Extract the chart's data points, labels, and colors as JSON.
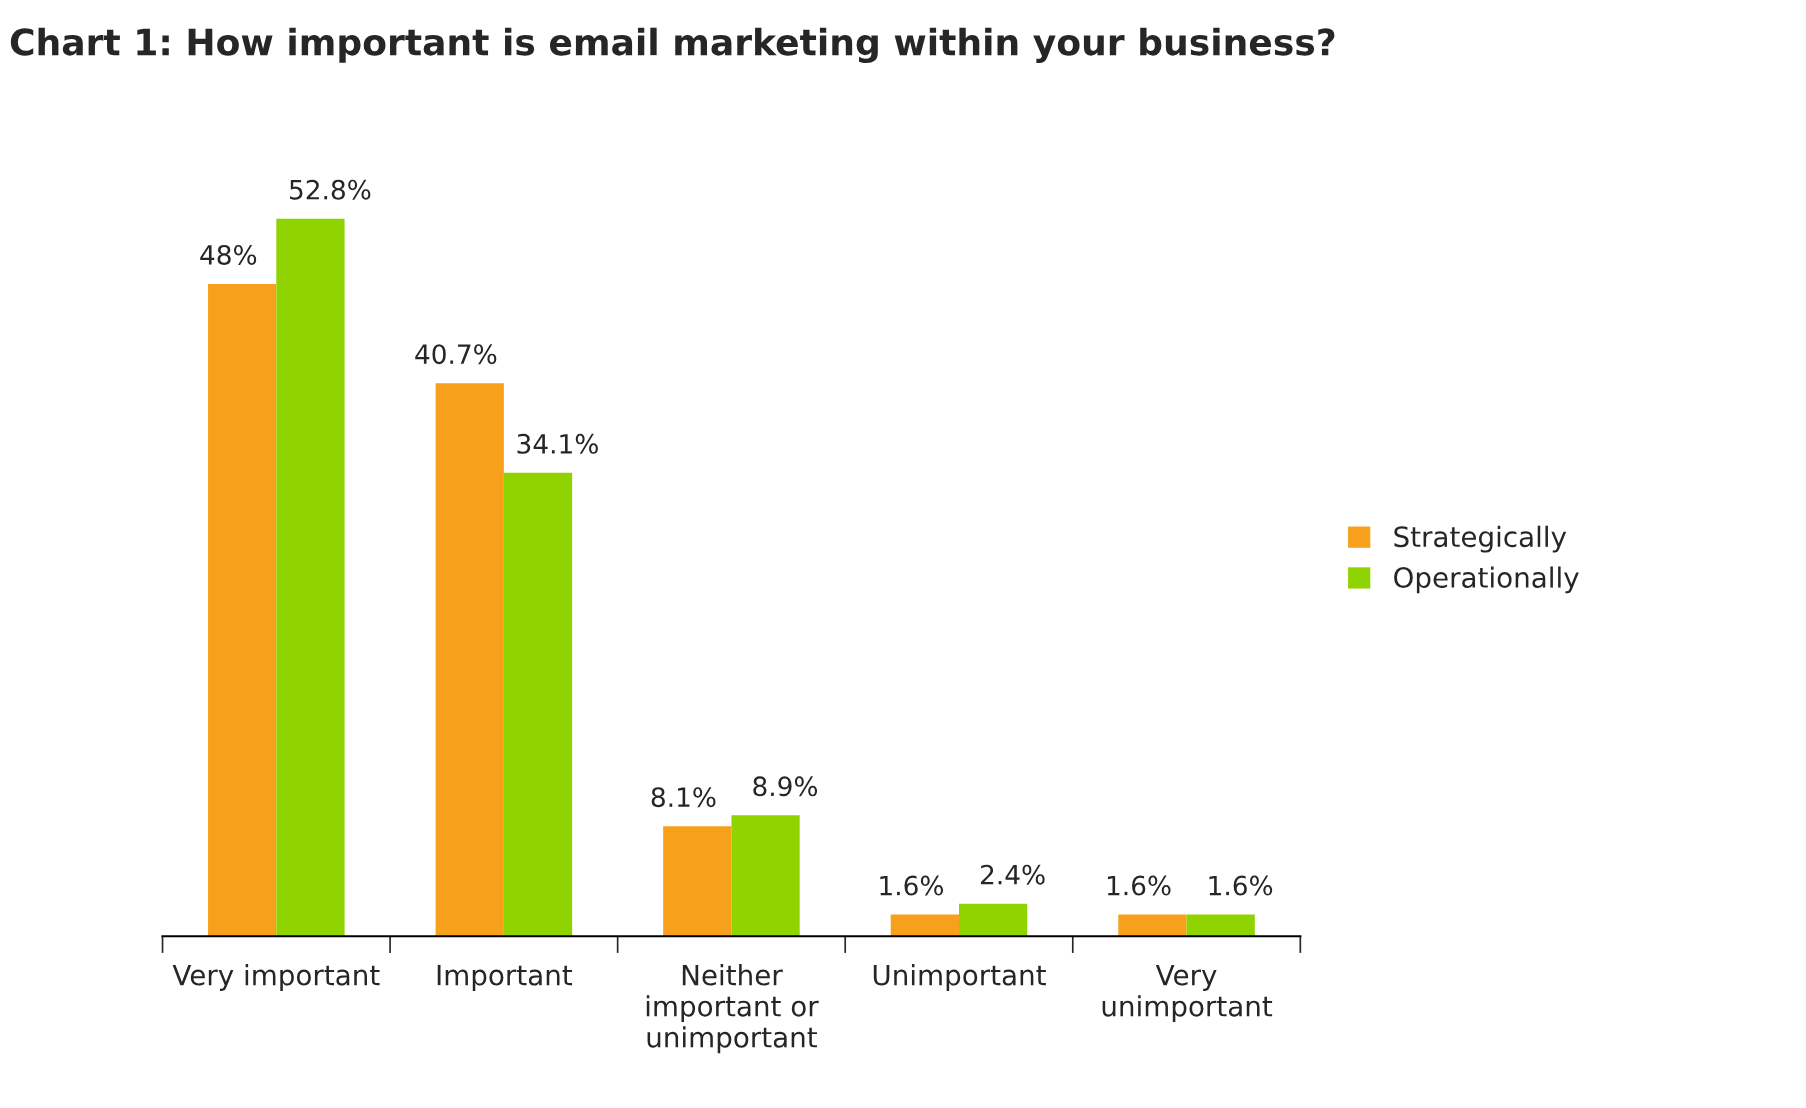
{
  "chart_data": {
    "type": "bar",
    "title": "Chart 1: How important is email marketing within your business?",
    "categories": [
      "Very important",
      "Important",
      "Neither\nimportant or\nunimportant",
      "Unimportant",
      "Very\nunimportant"
    ],
    "series": [
      {
        "name": "Strategically",
        "color": "#f7a01c",
        "values": [
          48,
          40.7,
          8.1,
          1.6,
          1.6
        ],
        "value_labels": [
          "48%",
          "40.7%",
          "8.1%",
          "1.6%",
          "1.6%"
        ]
      },
      {
        "name": "Operationally",
        "color": "#8fd400",
        "values": [
          52.8,
          34.1,
          8.9,
          2.4,
          1.6
        ],
        "value_labels": [
          "52.8%",
          "34.1%",
          "8.9%",
          "2.4%",
          "1.6%"
        ]
      }
    ],
    "legend": "right",
    "grid": false,
    "tick_labels": "x"
  }
}
